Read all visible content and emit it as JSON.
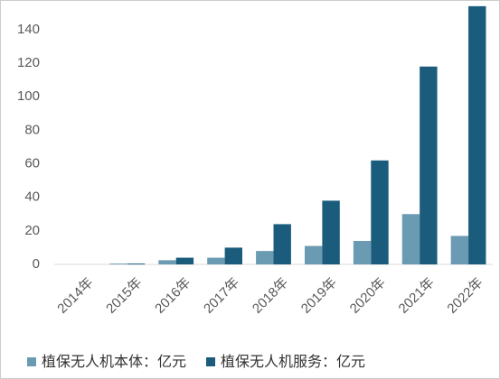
{
  "chart_data": {
    "type": "bar",
    "categories": [
      "2014年",
      "2015年",
      "2016年",
      "2017年",
      "2018年",
      "2019年",
      "2020年",
      "2021年",
      "2022年"
    ],
    "series": [
      {
        "name": "植保无人机本体：亿元",
        "color": "#6b9bb3",
        "values": [
          0,
          0.5,
          2.5,
          4,
          8,
          11,
          14,
          30,
          17
        ]
      },
      {
        "name": "植保无人机服务：亿元",
        "color": "#1b5c7c",
        "values": [
          0,
          0.5,
          4,
          10,
          24,
          38,
          62,
          118,
          154
        ]
      }
    ],
    "ylim": [
      0,
      155
    ],
    "yticks": [
      0,
      20,
      40,
      60,
      80,
      100,
      120,
      140
    ],
    "grid": false,
    "legend": "bottom"
  }
}
